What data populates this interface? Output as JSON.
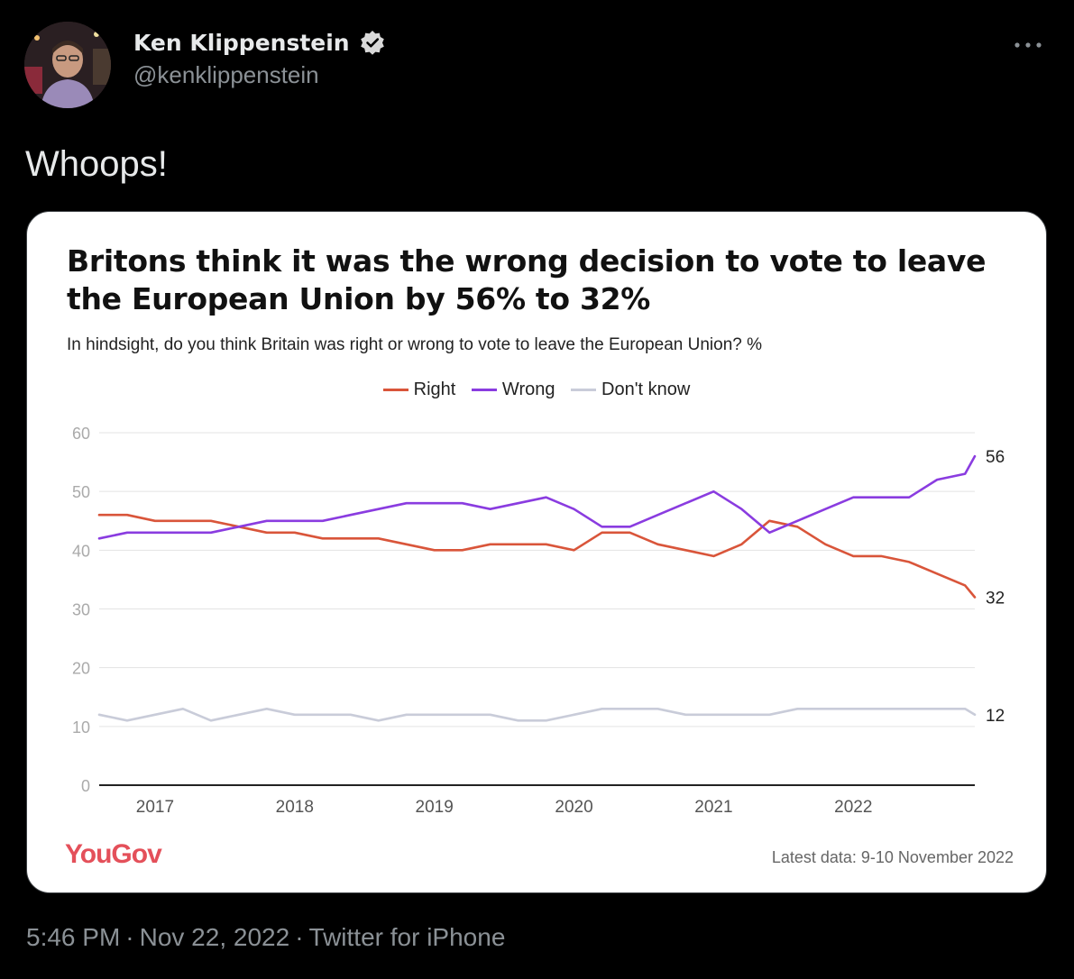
{
  "tweet": {
    "display_name": "Ken Klippenstein",
    "handle": "@kenklippenstein",
    "text": "Whoops!",
    "time": "5:46 PM",
    "date": "Nov 22, 2022",
    "source": "Twitter for iPhone",
    "separator": "·"
  },
  "colors": {
    "background": "#000000",
    "verified": "#d9d9d9",
    "right": "#d9553a",
    "wrong": "#8a3ce0",
    "dont_know": "#c9ccd9",
    "yougov": "#e4505a"
  },
  "icons": {
    "verified": "verified-badge-icon",
    "more": "more-dots-icon"
  },
  "chart_data": {
    "type": "line",
    "title": "Britons think it was the wrong decision to vote to leave the European Union by 56% to 32%",
    "subtitle": "In hindsight, do you think Britain was right or wrong to vote to leave the European Union? %",
    "ylim": [
      0,
      60
    ],
    "yticks": [
      0,
      10,
      20,
      30,
      40,
      50,
      60
    ],
    "xlim": [
      2016.6,
      2022.87
    ],
    "xticks": [
      2017,
      2018,
      2019,
      2020,
      2021,
      2022
    ],
    "x_tick_labels": [
      "2017",
      "2018",
      "2019",
      "2020",
      "2021",
      "2022"
    ],
    "legend_position": "top-center",
    "grid": true,
    "x": [
      2016.6,
      2016.8,
      2017.0,
      2017.2,
      2017.4,
      2017.6,
      2017.8,
      2018.0,
      2018.2,
      2018.4,
      2018.6,
      2018.8,
      2019.0,
      2019.2,
      2019.4,
      2019.6,
      2019.8,
      2020.0,
      2020.2,
      2020.4,
      2020.6,
      2020.8,
      2021.0,
      2021.2,
      2021.4,
      2021.6,
      2021.8,
      2022.0,
      2022.2,
      2022.4,
      2022.6,
      2022.8,
      2022.87
    ],
    "series": [
      {
        "name": "Right",
        "color": "#d9553a",
        "end_label": "32",
        "values": [
          46,
          46,
          45,
          45,
          45,
          44,
          43,
          43,
          42,
          42,
          42,
          41,
          40,
          40,
          41,
          41,
          41,
          40,
          43,
          43,
          41,
          40,
          39,
          41,
          45,
          44,
          41,
          39,
          39,
          38,
          36,
          34,
          32
        ]
      },
      {
        "name": "Wrong",
        "color": "#8a3ce0",
        "end_label": "56",
        "values": [
          42,
          43,
          43,
          43,
          43,
          44,
          45,
          45,
          45,
          46,
          47,
          48,
          48,
          48,
          47,
          48,
          49,
          47,
          44,
          44,
          46,
          48,
          50,
          47,
          43,
          45,
          47,
          49,
          49,
          49,
          52,
          53,
          56
        ]
      },
      {
        "name": "Don't know",
        "color": "#c9ccd9",
        "end_label": "12",
        "values": [
          12,
          11,
          12,
          13,
          11,
          12,
          13,
          12,
          12,
          12,
          11,
          12,
          12,
          12,
          12,
          11,
          11,
          12,
          13,
          13,
          13,
          12,
          12,
          12,
          12,
          13,
          13,
          13,
          13,
          13,
          13,
          13,
          12
        ]
      }
    ],
    "brand": "YouGov",
    "footnote": "Latest data: 9-10 November 2022"
  }
}
